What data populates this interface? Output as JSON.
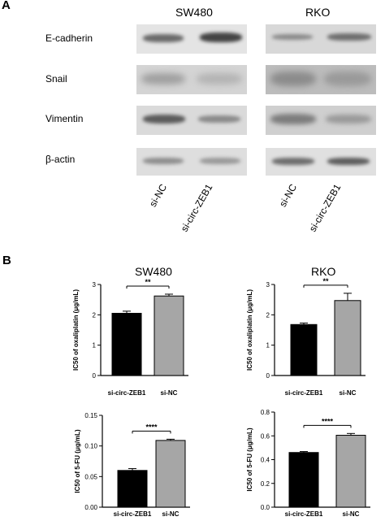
{
  "panel_a": {
    "letter": "A",
    "cell_lines": [
      "SW480",
      "RKO"
    ],
    "proteins": [
      "E-cadherin",
      "Snail",
      "Vimentin",
      "β-actin"
    ],
    "lanes": [
      "si-NC",
      "si-circ-ZEB1",
      "si-NC",
      "si-circ-ZEB1"
    ]
  },
  "panel_b": {
    "letter": "B",
    "col_titles": [
      "SW480",
      "RKO"
    ]
  },
  "chart_data": [
    {
      "type": "bar",
      "title": "",
      "categories": [
        "si-circ-ZEB1",
        "si-NC"
      ],
      "values": [
        2.05,
        2.62
      ],
      "errors": [
        0.07,
        0.06
      ],
      "colors": [
        "#000000",
        "#a6a6a6"
      ],
      "ylabel": "IC50 of oxaliplatin (μg/mL)",
      "ylim": [
        0,
        3
      ],
      "yticks": [
        0,
        1,
        2,
        3
      ],
      "ytick_labels": [
        "0",
        "1",
        "2",
        "3"
      ],
      "significance": "**"
    },
    {
      "type": "bar",
      "title": "",
      "categories": [
        "si-circ-ZEB1",
        "si-NC"
      ],
      "values": [
        1.68,
        2.47
      ],
      "errors": [
        0.05,
        0.24
      ],
      "colors": [
        "#000000",
        "#a6a6a6"
      ],
      "ylabel": "IC50 of oxaliplatin (μg/mL)",
      "ylim": [
        0,
        3
      ],
      "yticks": [
        0,
        1,
        2,
        3
      ],
      "ytick_labels": [
        "0",
        "1",
        "2",
        "3"
      ],
      "significance": "**"
    },
    {
      "type": "bar",
      "title": "",
      "categories": [
        "si-circ-ZEB1",
        "si-NC"
      ],
      "values": [
        0.06,
        0.109
      ],
      "errors": [
        0.003,
        0.002
      ],
      "colors": [
        "#000000",
        "#a6a6a6"
      ],
      "ylabel": "IC50 of 5-FU (μg/mL)",
      "ylim": [
        0,
        0.15
      ],
      "yticks": [
        0,
        0.05,
        0.1,
        0.15
      ],
      "ytick_labels": [
        "0.00",
        "0.05",
        "0.10",
        "0.15"
      ],
      "significance": "****"
    },
    {
      "type": "bar",
      "title": "",
      "categories": [
        "si-circ-ZEB1",
        "si-NC"
      ],
      "values": [
        0.46,
        0.605
      ],
      "errors": [
        0.008,
        0.015
      ],
      "colors": [
        "#000000",
        "#a6a6a6"
      ],
      "ylabel": "IC50 of 5-FU (μg/mL)",
      "ylim": [
        0,
        0.8
      ],
      "yticks": [
        0,
        0.2,
        0.4,
        0.6,
        0.8
      ],
      "ytick_labels": [
        "0.0",
        "0.2",
        "0.4",
        "0.6",
        "0.8"
      ],
      "significance": "****"
    }
  ]
}
